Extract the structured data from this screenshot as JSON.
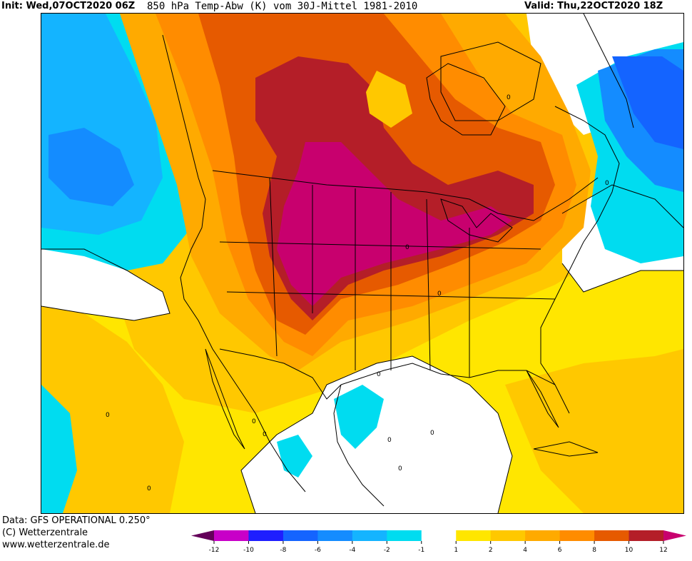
{
  "header": {
    "init": "Init: Wed,07OCT2020 06Z",
    "title": "850 hPa Temp-Abw (K) vom 30J-Mittel 1981-2010",
    "valid": "Valid: Thu,22OCT2020 18Z"
  },
  "footer": {
    "data": "Data: GFS OPERATIONAL 0.250°",
    "copyright": "(C) Wetterzentrale",
    "url": "www.wetterzentrale.de"
  },
  "legend": {
    "ticks": [
      "-12",
      "-10",
      "-8",
      "-6",
      "-4",
      "-2",
      "-1",
      "1",
      "2",
      "4",
      "6",
      "8",
      "10",
      "12"
    ],
    "colors": [
      "#c800c8",
      "#1e1eff",
      "#1464ff",
      "#148cff",
      "#14b4ff",
      "#00dcf0",
      "#ffffff",
      "#ffe600",
      "#ffc800",
      "#ffaa00",
      "#ff8c00",
      "#e65a00",
      "#b41e28"
    ],
    "low_end_color": "#64005a",
    "high_end_color": "#c8006e"
  },
  "contour_labels": [
    "0",
    "0",
    "0",
    "0",
    "0",
    "0",
    "0",
    "0",
    "0",
    "0",
    "0",
    "0"
  ],
  "map": {
    "projection": "polar-stereographic North America",
    "colors": {
      "white": "#ffffff",
      "cyan": "#00dcf0",
      "light_blue": "#14b4ff",
      "blue": "#148cff",
      "deep_blue": "#1464ff",
      "yellow": "#ffe600",
      "gold": "#ffc800",
      "orange_light": "#ffaa00",
      "orange": "#ff8c00",
      "dark_orange": "#e65a00",
      "red": "#b41e28",
      "magenta": "#c8006e"
    }
  }
}
